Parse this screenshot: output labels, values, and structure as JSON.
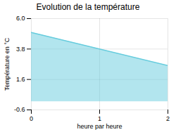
{
  "chart_data": {
    "type": "area",
    "title": "Evolution de la température",
    "x": [
      0,
      2
    ],
    "values": [
      5,
      2.6
    ],
    "color": "#66ccdd",
    "xlabel": "heure par heure",
    "ylabel": "Température en °C",
    "xlim": [
      0,
      2
    ],
    "ylim": [
      -0.6,
      6
    ],
    "xticks": [
      0,
      1,
      2
    ],
    "yticks": [
      -0.6,
      1.6,
      3.8,
      {
        "value": 6,
        "label": "6.0"
      }
    ],
    "grid": true
  }
}
